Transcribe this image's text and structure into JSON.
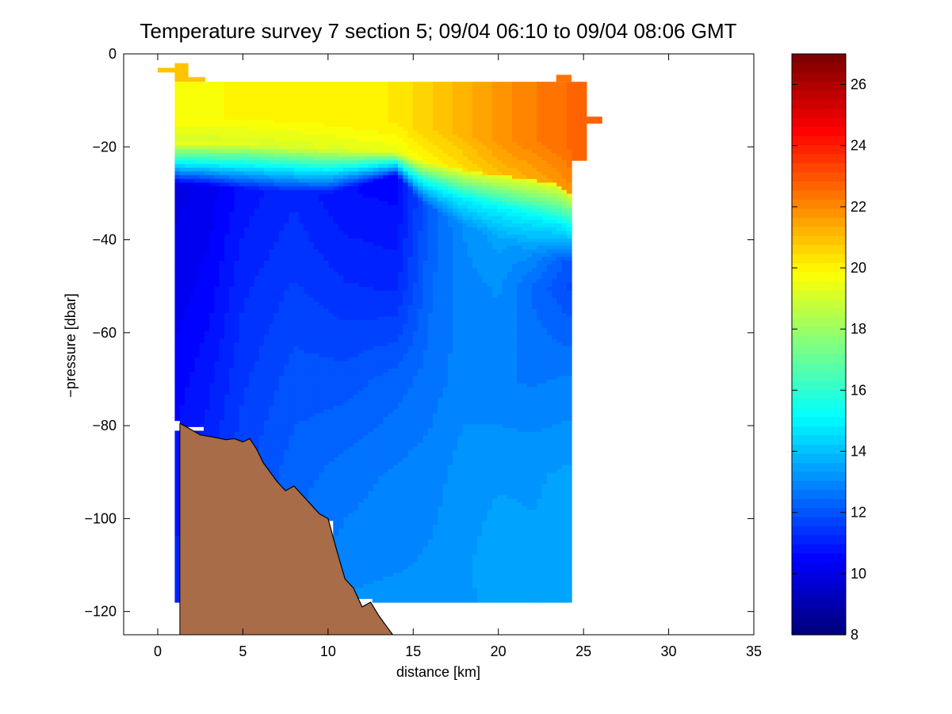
{
  "figure": {
    "title": "Temperature survey 7 section 5; 09/04 06:10 to 09/04 08:06 GMT",
    "xlabel": "distance [km]",
    "ylabel": "−pressure [dbar]"
  },
  "chart_data": {
    "type": "heatmap",
    "title": "Temperature survey 7 section 5; 09/04 06:10 to 09/04 08:06 GMT",
    "xlabel": "distance [km]",
    "ylabel": "−pressure [dbar]",
    "xlim": [
      -2,
      35
    ],
    "ylim": [
      -125,
      0
    ],
    "xticks": [
      0,
      5,
      10,
      15,
      20,
      25,
      30,
      35
    ],
    "xtick_labels": [
      "0",
      "5",
      "10",
      "15",
      "20",
      "25",
      "30",
      "35"
    ],
    "yticks": [
      0,
      -20,
      -40,
      -60,
      -80,
      -100,
      -120
    ],
    "ytick_labels": [
      "0",
      "−20",
      "−40",
      "−60",
      "−80",
      "−100",
      "−120"
    ],
    "colorbar": {
      "colormap": "jet",
      "limits": [
        8,
        27
      ],
      "ticks": [
        8,
        10,
        12,
        14,
        16,
        18,
        20,
        22,
        24,
        26
      ],
      "tick_labels": [
        "8",
        "10",
        "12",
        "14",
        "16",
        "18",
        "20",
        "22",
        "24",
        "26"
      ]
    },
    "grid": false,
    "section_extent": {
      "x": [
        1,
        24.3
      ],
      "y": [
        -118,
        -6
      ]
    },
    "upper_layer_extensions": [
      {
        "x": [
          0,
          1
        ],
        "y": [
          -4,
          -3
        ],
        "value": 21.0
      },
      {
        "x": [
          1,
          1.8
        ],
        "y": [
          -6,
          -2
        ],
        "value": 21.0
      },
      {
        "x": [
          1.8,
          2.8
        ],
        "y": [
          -6,
          -5
        ],
        "value": 21.0
      },
      {
        "x": [
          23.4,
          24.3
        ],
        "y": [
          -6,
          -4.5
        ],
        "value": 22.5
      },
      {
        "x": [
          24.3,
          25.2
        ],
        "y": [
          -23,
          -6
        ],
        "value": 22.6
      },
      {
        "x": [
          25.2,
          26.1
        ],
        "y": [
          -15,
          -13.5
        ],
        "value": 22.6
      }
    ],
    "missing_data_cutouts": [
      {
        "x": [
          1.0,
          1.3
        ],
        "y": [
          -81,
          -79
        ]
      },
      {
        "x": [
          1.3,
          2.7
        ],
        "y": [
          -81,
          -80.3
        ]
      },
      {
        "x": [
          6.3,
          7.0
        ],
        "y": [
          -93.5,
          -92.5
        ]
      },
      {
        "x": [
          9.0,
          10.3
        ],
        "y": [
          -118,
          -100.5
        ]
      },
      {
        "x": [
          10.3,
          11.5
        ],
        "y": [
          -118,
          -116.5
        ]
      },
      {
        "x": [
          11.5,
          12.6
        ],
        "y": [
          -118,
          -117.3
        ]
      }
    ],
    "bathymetry": {
      "label": "seafloor",
      "fill_color": "#a86c48",
      "bottom_y": -125,
      "x": [
        1.3,
        1.8,
        2.5,
        3.3,
        4.0,
        4.5,
        5.0,
        5.4,
        5.8,
        6.2,
        6.6,
        7.0,
        7.5,
        8.0,
        8.5,
        9.0,
        9.5,
        10.0,
        10.3,
        10.6,
        11.0,
        11.5,
        12.0,
        12.5,
        13.0,
        13.5,
        13.8
      ],
      "y": [
        -79.5,
        -80.5,
        -82,
        -82.5,
        -83,
        -82.8,
        -83.5,
        -82.8,
        -85,
        -88,
        -90,
        -92,
        -94,
        -93,
        -95,
        -97,
        -99,
        -100,
        -104,
        -108,
        -113,
        -115,
        -119,
        -118,
        -121,
        -123.5,
        -125
      ]
    },
    "temperature_field": {
      "layers": [
        {
          "name": "warm surface layer",
          "x": [
            1,
            5,
            10,
            14,
            15.5,
            18,
            20,
            22,
            23.5,
            24.3
          ],
          "y_bottom": [
            -19,
            -19,
            -20,
            -21,
            -23,
            -25,
            -26,
            -27,
            -28,
            -30
          ],
          "surface_value": [
            19.8,
            19.9,
            20.0,
            20.2,
            20.6,
            21.2,
            21.8,
            22.2,
            22.5,
            22.6
          ]
        },
        {
          "name": "thermocline",
          "x": [
            1,
            5,
            10,
            14,
            15.5,
            18,
            20,
            22,
            24.3
          ],
          "y_bottom": [
            -28,
            -29,
            -30,
            -26,
            -32,
            -37,
            -40,
            -43,
            -45
          ],
          "value": 15.0
        },
        {
          "name": "cold core",
          "x": [
            1,
            3,
            5,
            8,
            11,
            14,
            16,
            18,
            20,
            22,
            24.3
          ],
          "value_by_depth": {
            "y": [
              -30,
              -50,
              -70,
              -90,
              -110,
              -118
            ],
            "rows": [
              [
                10.0,
                10.2,
                10.8,
                11.2,
                10.7,
                10.6,
                12.2,
                13.2,
                13.8,
                14.3,
                12.5
              ],
              [
                10.2,
                10.5,
                11.2,
                11.6,
                11.3,
                11.2,
                12.4,
                12.9,
                13.1,
                12.4,
                11.8
              ],
              [
                10.5,
                10.9,
                11.5,
                12.0,
                12.0,
                12.3,
                12.6,
                12.9,
                12.8,
                12.7,
                12.8
              ],
              [
                10.8,
                11.2,
                11.8,
                12.3,
                12.6,
                12.8,
                12.9,
                13.2,
                13.3,
                13.3,
                13.4
              ],
              [
                11.0,
                11.5,
                12.0,
                12.6,
                12.9,
                13.0,
                13.1,
                13.3,
                13.5,
                13.4,
                13.5
              ],
              [
                11.0,
                11.5,
                12.0,
                12.8,
                13.1,
                13.2,
                13.2,
                13.3,
                13.4,
                13.4,
                13.5
              ]
            ]
          }
        }
      ]
    }
  }
}
